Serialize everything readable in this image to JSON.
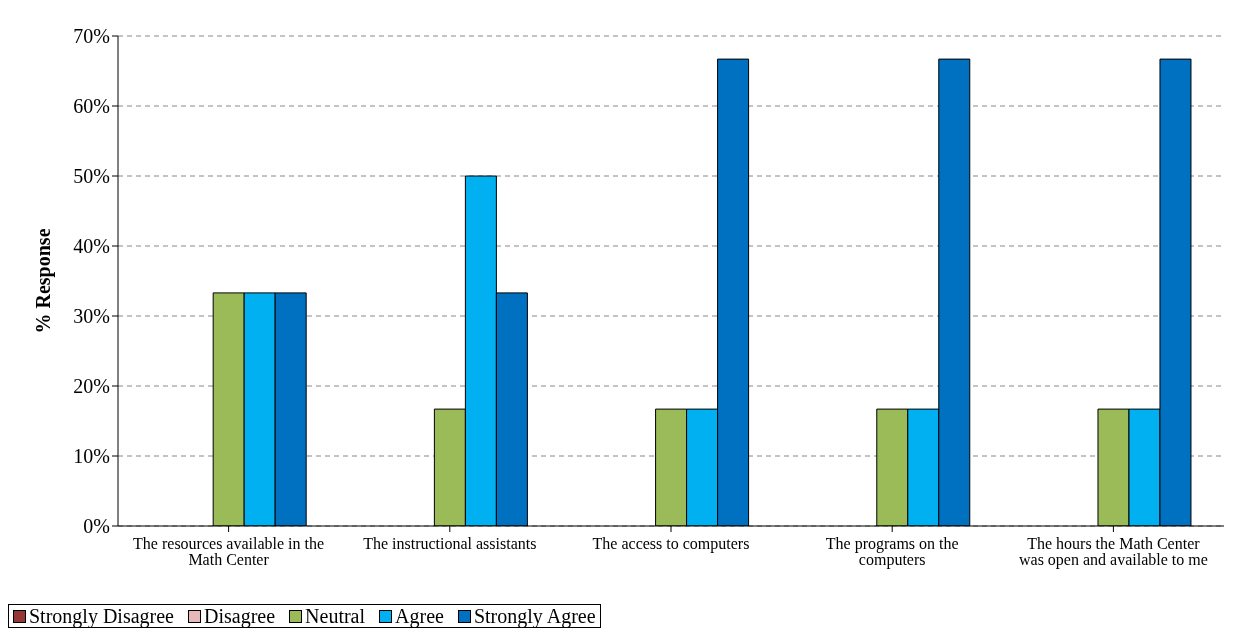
{
  "chart_data": {
    "type": "bar",
    "ylabel": "% Response",
    "categories": [
      "The resources available in the Math Center",
      "The instructional assistants",
      "The access to computers",
      "The programs on the computers",
      "The hours the Math Center was open and available to me"
    ],
    "series": [
      {
        "name": "Strongly Disagree",
        "color": "#953735",
        "values": [
          0,
          0,
          0,
          0,
          0
        ]
      },
      {
        "name": "Disagree",
        "color": "#e6b9b8",
        "values": [
          0,
          0,
          0,
          0,
          0
        ]
      },
      {
        "name": "Neutral",
        "color": "#9bbb59",
        "values": [
          33.3,
          16.7,
          16.7,
          16.7,
          16.7
        ]
      },
      {
        "name": "Agree",
        "color": "#00b0f0",
        "values": [
          33.3,
          50,
          16.7,
          16.7,
          16.7
        ]
      },
      {
        "name": "Strongly Agree",
        "color": "#0070c0",
        "values": [
          33.3,
          33.3,
          66.7,
          66.7,
          66.7
        ]
      }
    ],
    "ylim": [
      0,
      70
    ],
    "yticks": [
      {
        "value": 0,
        "label": "0%"
      },
      {
        "value": 10,
        "label": "10%"
      },
      {
        "value": 20,
        "label": "20%"
      },
      {
        "value": 30,
        "label": "30%"
      },
      {
        "value": 40,
        "label": "40%"
      },
      {
        "value": 50,
        "label": "50%"
      },
      {
        "value": 60,
        "label": "60%"
      },
      {
        "value": 70,
        "label": "70%"
      }
    ],
    "grid": "y",
    "legend": "bottom left"
  }
}
